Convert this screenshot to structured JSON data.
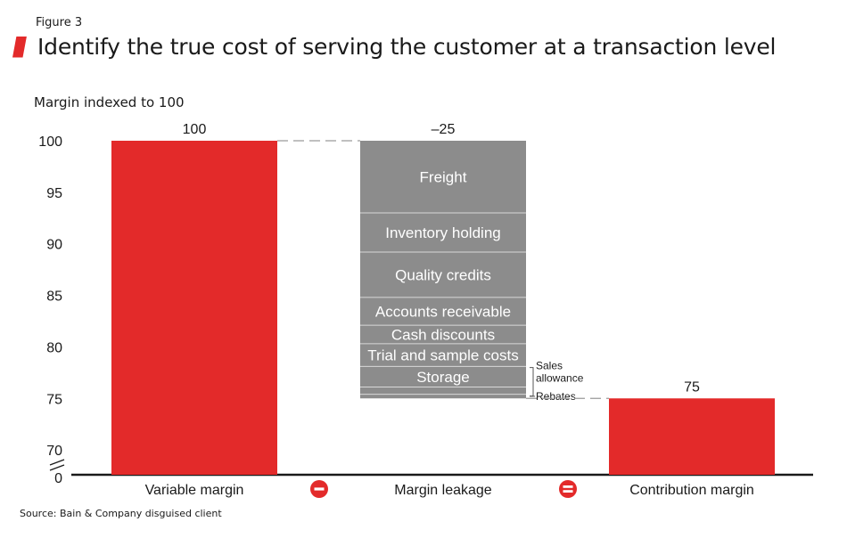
{
  "figure_label": "Figure 3",
  "title": "Identify the true cost of serving the customer at a transaction level",
  "source": "Source: Bain & Company disguised client",
  "colors": {
    "positive": "#e32a2a",
    "leakage": "#8c8c8c",
    "operator_circle": "#e32a2a"
  },
  "operators": [
    "minus-icon",
    "equals-icon"
  ],
  "chart_data": {
    "type": "bar",
    "subtype": "waterfall",
    "ylabel": "Margin indexed to 100",
    "ylim": [
      70,
      100
    ],
    "yticks": [
      100,
      95,
      90,
      85,
      80,
      75,
      70
    ],
    "baseline_label": "0",
    "axis_break": true,
    "categories": [
      "Variable margin",
      "Margin leakage",
      "Contribution margin"
    ],
    "values": [
      100,
      -25,
      75
    ],
    "value_labels": [
      "100",
      "–25",
      "75"
    ],
    "leakage_components": [
      {
        "name": "Freight",
        "value": 7
      },
      {
        "name": "Inventory holding",
        "value": 3.8
      },
      {
        "name": "Quality credits",
        "value": 4.4
      },
      {
        "name": "Accounts receivable",
        "value": 2.7
      },
      {
        "name": "Cash discounts",
        "value": 1.8
      },
      {
        "name": "Trial and sample costs",
        "value": 2.2
      },
      {
        "name": "Storage",
        "value": 2
      },
      {
        "name": "Sales allowance",
        "value": 0.7
      },
      {
        "name": "Rebates",
        "value": 0.4
      }
    ],
    "callout_labels": [
      "Sales",
      "allowance",
      "Rebates"
    ]
  }
}
